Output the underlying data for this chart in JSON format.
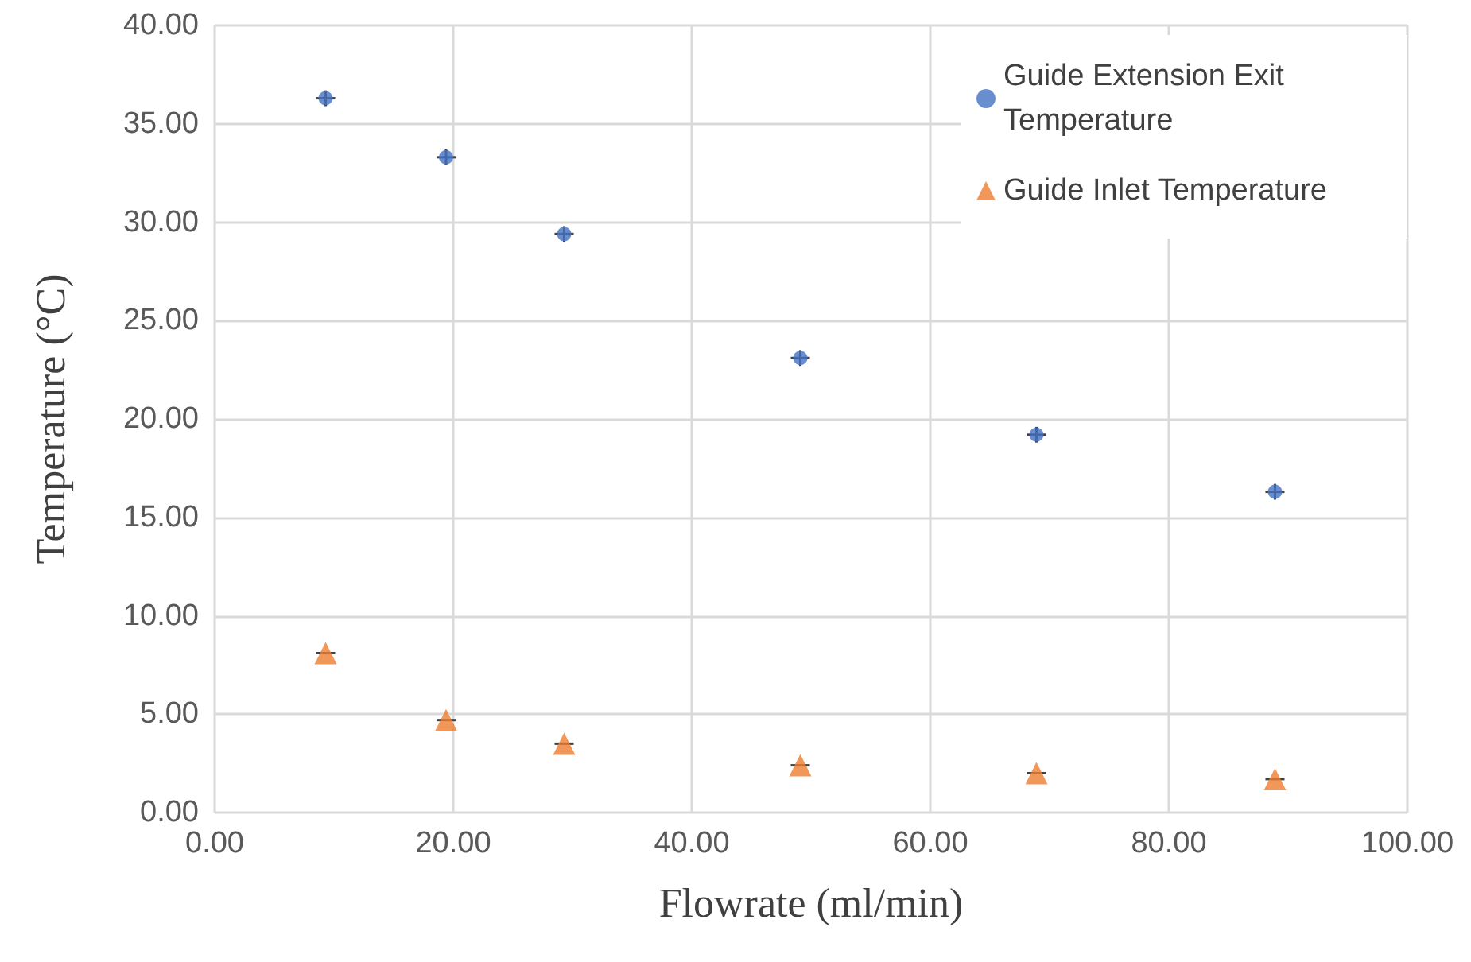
{
  "chart_data": {
    "type": "scatter",
    "xlabel": "Flowrate (ml/min)",
    "ylabel": "Temperature (°C)",
    "x": [
      9.3,
      19.4,
      29.3,
      49.1,
      68.9,
      88.9
    ],
    "series": [
      {
        "name": "Guide Extension Exit Temperature",
        "color": "#4472c4",
        "marker": "circle",
        "values": [
          36.3,
          33.3,
          29.4,
          23.1,
          19.2,
          16.3
        ],
        "errors": [
          0.4,
          0.4,
          0.4,
          0.4,
          0.4,
          0.4
        ],
        "xerrors": [
          0.8,
          0.8,
          0.8,
          0.8,
          0.8,
          0.8
        ]
      },
      {
        "name": "Guide Inlet Temperature",
        "color": "#ed7d31",
        "marker": "triangle",
        "values": [
          8.1,
          4.7,
          3.5,
          2.4,
          2.0,
          1.7
        ],
        "xerrors": [
          0.8,
          0.8,
          0.8,
          0.8,
          0.8,
          0.8
        ]
      }
    ],
    "xlim": [
      0,
      100
    ],
    "xticks": [
      {
        "value": 0,
        "label": "0.00"
      },
      {
        "value": 20,
        "label": "20.00"
      },
      {
        "value": 40,
        "label": "40.00"
      },
      {
        "value": 60,
        "label": "60.00"
      },
      {
        "value": 80,
        "label": "80.00"
      },
      {
        "value": 100,
        "label": "100.00"
      }
    ],
    "ylim": [
      0,
      40
    ],
    "yticks": [
      {
        "value": 0,
        "label": "0.00"
      },
      {
        "value": 5,
        "label": "5.00"
      },
      {
        "value": 10,
        "label": "10.00"
      },
      {
        "value": 15,
        "label": "15.00"
      },
      {
        "value": 20,
        "label": "20.00"
      },
      {
        "value": 25,
        "label": "25.00"
      },
      {
        "value": 30,
        "label": "30.00"
      },
      {
        "value": 35,
        "label": "35.00"
      },
      {
        "value": 40,
        "label": "40.00"
      }
    ],
    "grid": true,
    "legend": "top right"
  }
}
